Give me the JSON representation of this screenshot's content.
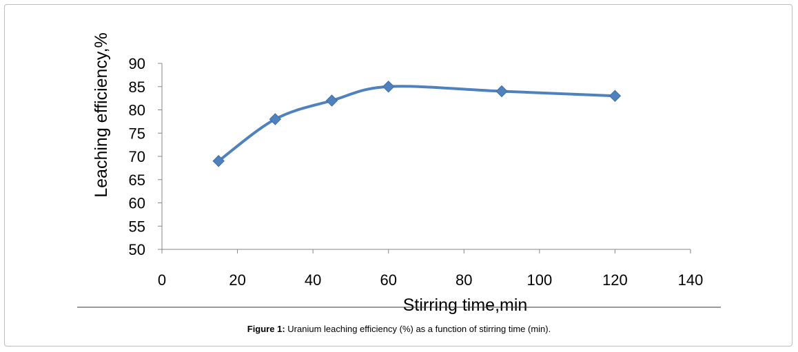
{
  "chart_data": {
    "type": "line",
    "ylabel": "Leaching efficiency,%",
    "xlabel": "Stirring time,min",
    "xlim": [
      0,
      140
    ],
    "ylim": [
      50,
      90
    ],
    "xticks": [
      "0",
      "20",
      "40",
      "60",
      "80",
      "100",
      "120",
      "140"
    ],
    "yticks": [
      "50",
      "55",
      "60",
      "65",
      "70",
      "75",
      "80",
      "85",
      "90"
    ],
    "series": [
      {
        "x": [
          15,
          30,
          45,
          60,
          90,
          120
        ],
        "y": [
          69,
          78,
          82,
          85,
          84,
          83
        ]
      }
    ],
    "color": "#4f81bd",
    "grid": false,
    "marker": "diamond"
  },
  "caption": {
    "label": "Figure 1:",
    "text": " Uranium leaching efficiency (%) as a function of stirring time (min)."
  }
}
